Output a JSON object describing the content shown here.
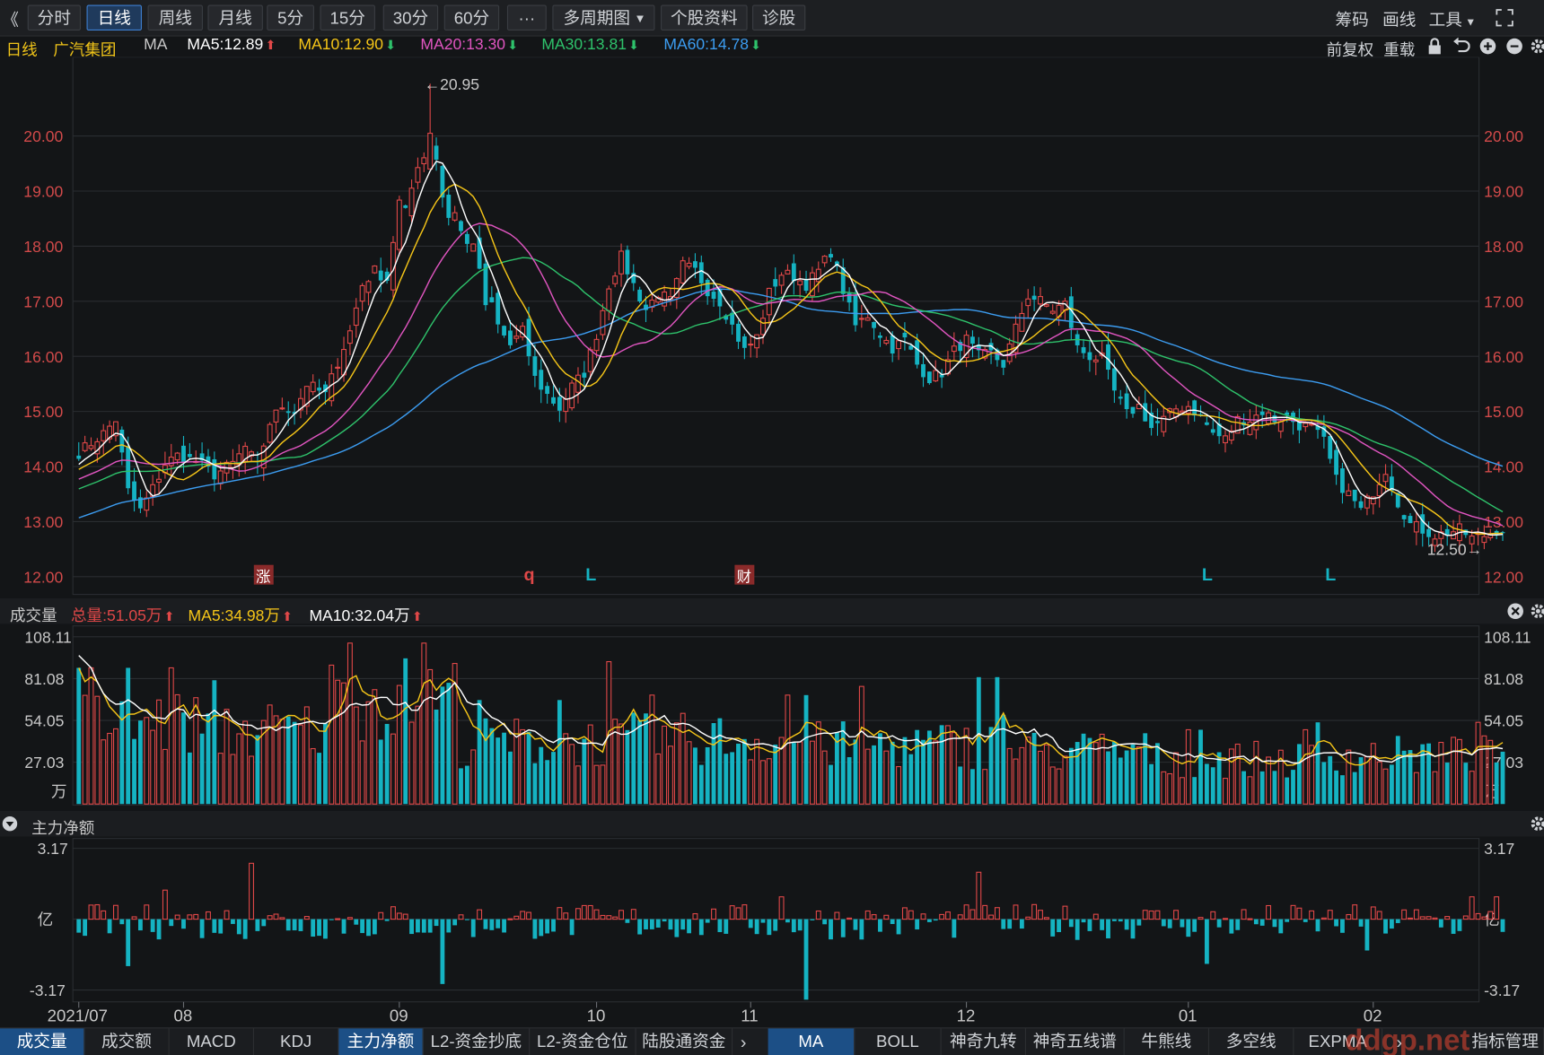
{
  "toolbar": {
    "back": "《",
    "periods": [
      "分时",
      "日线",
      "周线",
      "月线",
      "5分",
      "15分",
      "30分",
      "60分",
      "···"
    ],
    "multi_period": "多周期图",
    "stock_info": "个股资料",
    "diagnose": "诊股",
    "right": [
      "筹码",
      "画线",
      "工具"
    ]
  },
  "legend": {
    "period": "日线",
    "stock_name": "广汽集团",
    "indicator": "MA",
    "items": [
      {
        "label": "MA5:12.89",
        "color": "#ffffff",
        "dir": "up"
      },
      {
        "label": "MA10:12.90",
        "color": "#f5c518",
        "dir": "down"
      },
      {
        "label": "MA20:13.30",
        "color": "#e055c0",
        "dir": "down"
      },
      {
        "label": "MA30:13.81",
        "color": "#2ec26b",
        "dir": "down"
      },
      {
        "label": "MA60:14.78",
        "color": "#3c9cf0",
        "dir": "down"
      }
    ],
    "right": [
      "前复权",
      "重载"
    ]
  },
  "volume_header": {
    "title": "成交量",
    "items": [
      {
        "label": "总量:51.05万",
        "color": "#e04848",
        "dir": "up"
      },
      {
        "label": "MA5:34.98万",
        "color": "#f5c518",
        "dir": "up"
      },
      {
        "label": "MA10:32.04万",
        "color": "#ffffff",
        "dir": "up"
      }
    ]
  },
  "fund_header": {
    "title": "主力净额"
  },
  "bottom_tabs_left": [
    "成交量",
    "成交额",
    "MACD",
    "KDJ",
    "主力净额",
    "L2-资金抄底",
    "L2-资金仓位",
    "陆股通资金"
  ],
  "bottom_tabs_right": [
    "MA",
    "BOLL",
    "神奇九转",
    "神奇五线谱",
    "牛熊线",
    "多空线",
    "EXPMA"
  ],
  "bottom_right": "指标管理",
  "watermark": "ddgp.net",
  "colors": {
    "up": "#e04848",
    "down": "#15b3c2",
    "ma5": "#ffffff",
    "ma10": "#f5c518",
    "ma20": "#e055c0",
    "ma30": "#2ec26b",
    "ma60": "#3c9cf0"
  },
  "chart_data": [
    {
      "type": "candlestick",
      "yticks": [
        "20.00",
        "19.00",
        "18.00",
        "17.00",
        "16.00",
        "15.00",
        "14.00",
        "13.00",
        "12.00"
      ],
      "ylim": [
        12,
        20.95
      ],
      "x_labels": [
        {
          "index": 0,
          "label": "2021/07"
        },
        {
          "index": 17,
          "label": "08"
        },
        {
          "index": 52,
          "label": "09"
        },
        {
          "index": 84,
          "label": "10"
        },
        {
          "index": 109,
          "label": "11"
        },
        {
          "index": 144,
          "label": "12"
        },
        {
          "index": 180,
          "label": "01"
        },
        {
          "index": 210,
          "label": "02"
        }
      ],
      "annotations": [
        {
          "type": "high",
          "index": 57,
          "value": 20.95,
          "label": "←20.95"
        },
        {
          "type": "low",
          "index": 228,
          "value": 12.5,
          "label": "12.50→"
        }
      ],
      "event_markers": [
        {
          "index": 30,
          "label": "涨",
          "style": "box"
        },
        {
          "index": 73,
          "label": "q",
          "style": "red"
        },
        {
          "index": 83,
          "label": "L",
          "style": "cyan"
        },
        {
          "index": 108,
          "label": "财",
          "style": "box"
        },
        {
          "index": 183,
          "label": "L",
          "style": "cyan"
        },
        {
          "index": 203,
          "label": "L",
          "style": "cyan"
        }
      ],
      "key_closes": [
        [
          0,
          14.25
        ],
        [
          4,
          14.6
        ],
        [
          6,
          14.85
        ],
        [
          8,
          13.55
        ],
        [
          10,
          13.2
        ],
        [
          12,
          13.6
        ],
        [
          14,
          14.05
        ],
        [
          16,
          14.2
        ],
        [
          19,
          14.1
        ],
        [
          22,
          13.85
        ],
        [
          25,
          14.05
        ],
        [
          27,
          14.35
        ],
        [
          29,
          14.0
        ],
        [
          31,
          14.8
        ],
        [
          33,
          15.1
        ],
        [
          35,
          15.0
        ],
        [
          37,
          15.5
        ],
        [
          40,
          15.3
        ],
        [
          42,
          15.9
        ],
        [
          44,
          16.45
        ],
        [
          46,
          17.3
        ],
        [
          48,
          17.55
        ],
        [
          50,
          17.4
        ],
        [
          52,
          18.8
        ],
        [
          53,
          18.6
        ],
        [
          55,
          19.5
        ],
        [
          57,
          19.75
        ],
        [
          58,
          19.6
        ],
        [
          59,
          18.9
        ],
        [
          60,
          18.55
        ],
        [
          61,
          18.6
        ],
        [
          62,
          18.25
        ],
        [
          64,
          17.95
        ],
        [
          65,
          17.6
        ],
        [
          66,
          16.85
        ],
        [
          67,
          16.95
        ],
        [
          68,
          16.55
        ],
        [
          70,
          16.2
        ],
        [
          72,
          16.45
        ],
        [
          74,
          15.6
        ],
        [
          76,
          15.3
        ],
        [
          78,
          15.05
        ],
        [
          80,
          15.45
        ],
        [
          82,
          15.7
        ],
        [
          84,
          16.4
        ],
        [
          86,
          17.3
        ],
        [
          88,
          17.8
        ],
        [
          90,
          17.3
        ],
        [
          92,
          16.85
        ],
        [
          94,
          17.15
        ],
        [
          96,
          17.0
        ],
        [
          98,
          17.65
        ],
        [
          100,
          17.55
        ],
        [
          102,
          17.2
        ],
        [
          104,
          17.0
        ],
        [
          106,
          16.55
        ],
        [
          108,
          16.1
        ],
        [
          110,
          16.35
        ],
        [
          112,
          17.15
        ],
        [
          114,
          17.5
        ],
        [
          116,
          17.45
        ],
        [
          118,
          17.3
        ],
        [
          120,
          17.55
        ],
        [
          122,
          17.9
        ],
        [
          124,
          17.2
        ],
        [
          126,
          16.55
        ],
        [
          128,
          16.75
        ],
        [
          130,
          16.4
        ],
        [
          132,
          16.15
        ],
        [
          134,
          16.3
        ],
        [
          136,
          15.85
        ],
        [
          138,
          15.6
        ],
        [
          140,
          15.7
        ],
        [
          142,
          16.1
        ],
        [
          144,
          16.3
        ],
        [
          146,
          16.0
        ],
        [
          148,
          16.05
        ],
        [
          150,
          15.85
        ],
        [
          152,
          16.5
        ],
        [
          154,
          17.1
        ],
        [
          156,
          17.0
        ],
        [
          158,
          16.85
        ],
        [
          160,
          16.95
        ],
        [
          162,
          16.15
        ],
        [
          164,
          16.0
        ],
        [
          166,
          15.95
        ],
        [
          168,
          15.35
        ],
        [
          170,
          14.95
        ],
        [
          172,
          15.1
        ],
        [
          174,
          14.7
        ],
        [
          176,
          14.85
        ],
        [
          178,
          15.05
        ],
        [
          180,
          15.1
        ],
        [
          182,
          14.9
        ],
        [
          184,
          14.6
        ],
        [
          186,
          14.5
        ],
        [
          188,
          14.85
        ],
        [
          190,
          14.85
        ],
        [
          192,
          15.0
        ],
        [
          194,
          14.85
        ],
        [
          196,
          14.9
        ],
        [
          198,
          14.75
        ],
        [
          200,
          14.7
        ],
        [
          202,
          14.45
        ],
        [
          204,
          13.75
        ],
        [
          206,
          13.5
        ],
        [
          208,
          13.2
        ],
        [
          210,
          13.55
        ],
        [
          212,
          13.95
        ],
        [
          214,
          13.35
        ],
        [
          216,
          12.95
        ],
        [
          218,
          12.85
        ],
        [
          220,
          12.75
        ],
        [
          222,
          12.8
        ],
        [
          224,
          12.85
        ],
        [
          226,
          12.7
        ],
        [
          228,
          12.75
        ],
        [
          230,
          12.85
        ]
      ]
    },
    {
      "type": "bar",
      "name_visible": "成交量",
      "yticks": [
        "108.11",
        "81.08",
        "54.05",
        "27.03"
      ],
      "unit": "万",
      "ylim": [
        0,
        108.11
      ]
    },
    {
      "type": "bar",
      "name_visible": "主力净额",
      "yticks": [
        "3.17",
        "亿",
        "-3.17"
      ],
      "ylim": [
        -3.17,
        3.17
      ]
    }
  ]
}
